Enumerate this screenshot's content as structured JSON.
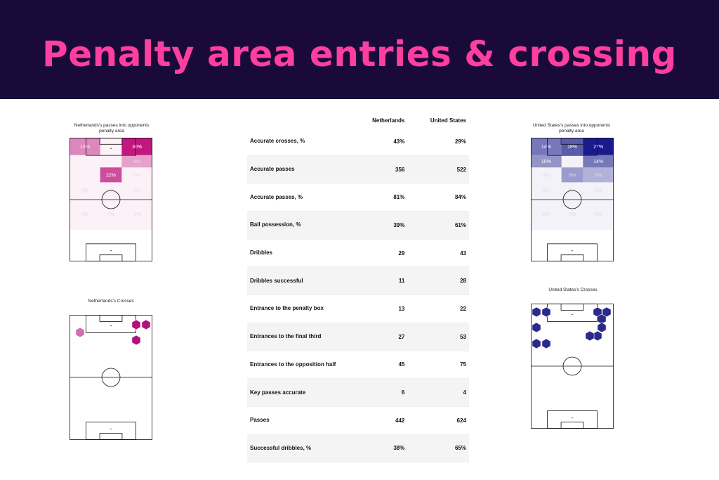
{
  "header": {
    "title": "Penalty area entries & crossing",
    "background": "#1a0a3a",
    "title_color": "#ff3fa0"
  },
  "pa_left": {
    "title": "Netherlands's passes into opponents penalty area",
    "color": "#c0187f",
    "zones": [
      {
        "label": "13%",
        "value": 13
      },
      {
        "label": "",
        "value": 0
      },
      {
        "label": "30%",
        "value": 30
      },
      {
        "label": "",
        "value": 0
      },
      {
        "label": "",
        "value": 0
      },
      {
        "label": "9%",
        "value": 9
      },
      {
        "label": "",
        "value": 0
      },
      {
        "label": "22%",
        "value": 22
      },
      {
        "label": "0%",
        "value": 0
      },
      {
        "label": "0%",
        "value": 0
      },
      {
        "label": "0%",
        "value": 0
      },
      {
        "label": "0%",
        "value": 0
      },
      {
        "label": "0%",
        "value": 0
      },
      {
        "label": "0%",
        "value": 0
      },
      {
        "label": "0%",
        "value": 0
      }
    ]
  },
  "pa_right": {
    "title": "United States's passes into opponents penalty area",
    "color": "#1a1a8c",
    "zones": [
      {
        "label": "14%",
        "value": 14
      },
      {
        "label": "18%",
        "value": 18
      },
      {
        "label": "27%",
        "value": 27
      },
      {
        "label": "10%",
        "value": 10
      },
      {
        "label": "",
        "value": 0
      },
      {
        "label": "14%",
        "value": 14
      },
      {
        "label": "0%",
        "value": 0
      },
      {
        "label": "9%",
        "value": 9
      },
      {
        "label": "6%",
        "value": 6
      },
      {
        "label": "0%",
        "value": 0
      },
      {
        "label": "0%",
        "value": 0
      },
      {
        "label": "0%",
        "value": 0
      },
      {
        "label": "0%",
        "value": 0
      },
      {
        "label": "0%",
        "value": 0
      },
      {
        "label": "0%",
        "value": 0
      }
    ]
  },
  "cross_left": {
    "title": "Netherlands's Crosses",
    "color": "#b0117a",
    "light_color": "#d070b0"
  },
  "cross_right": {
    "title": "United States's Crosses",
    "color": "#2a2a8a"
  },
  "stats": {
    "headers": [
      "",
      "Netherlands",
      "United States"
    ],
    "rows": [
      {
        "metric": "Accurate crosses, %",
        "nl": "43%",
        "us": "29%"
      },
      {
        "metric": "Accurate passes",
        "nl": "356",
        "us": "522"
      },
      {
        "metric": "Accurate passes, %",
        "nl": "81%",
        "us": "84%"
      },
      {
        "metric": "Ball possession, %",
        "nl": "39%",
        "us": "61%"
      },
      {
        "metric": "Dribbles",
        "nl": "29",
        "us": "43"
      },
      {
        "metric": "Dribbles successful",
        "nl": "11",
        "us": "28"
      },
      {
        "metric": "Entrance to the penalty box",
        "nl": "13",
        "us": "22"
      },
      {
        "metric": "Entrances to the final third",
        "nl": "27",
        "us": "53"
      },
      {
        "metric": "Entrances to the opposition half",
        "nl": "45",
        "us": "75"
      },
      {
        "metric": "Key passes accurate",
        "nl": "6",
        "us": "4"
      },
      {
        "metric": "Passes",
        "nl": "442",
        "us": "624"
      },
      {
        "metric": "Successful dribbles, %",
        "nl": "38%",
        "us": "65%"
      }
    ]
  }
}
